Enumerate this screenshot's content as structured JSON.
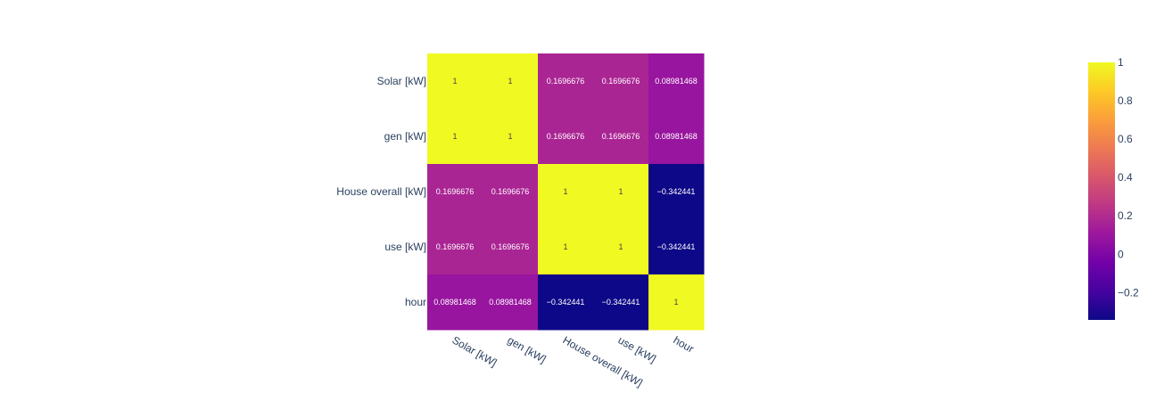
{
  "chart_data": {
    "type": "heatmap",
    "x": [
      "Solar [kW]",
      "gen [kW]",
      "House overall [kW]",
      "use [kW]",
      "hour"
    ],
    "y": [
      "Solar [kW]",
      "gen [kW]",
      "House overall [kW]",
      "use [kW]",
      "hour"
    ],
    "z": [
      [
        1,
        1,
        0.1696676,
        0.1696676,
        0.08981468
      ],
      [
        1,
        1,
        0.1696676,
        0.1696676,
        0.08981468
      ],
      [
        0.1696676,
        0.1696676,
        1,
        1,
        -0.342441
      ],
      [
        0.1696676,
        0.1696676,
        1,
        1,
        -0.342441
      ],
      [
        0.08981468,
        0.08981468,
        -0.342441,
        -0.342441,
        1
      ]
    ],
    "text": [
      [
        "1",
        "1",
        "0.1696676",
        "0.1696676",
        "0.08981468"
      ],
      [
        "1",
        "1",
        "0.1696676",
        "0.1696676",
        "0.08981468"
      ],
      [
        "0.1696676",
        "0.1696676",
        "1",
        "1",
        "−0.342441"
      ],
      [
        "0.1696676",
        "0.1696676",
        "1",
        "1",
        "−0.342441"
      ],
      [
        "0.08981468",
        "0.08981468",
        "−0.342441",
        "−0.342441",
        "1"
      ]
    ],
    "zmin": -0.342441,
    "zmax": 1,
    "colorscale": [
      "#0d0887",
      "#46039f",
      "#7201a8",
      "#9c179e",
      "#bd3786",
      "#d8576b",
      "#ed7953",
      "#fb9f3a",
      "#fdca26",
      "#f0f921"
    ],
    "colorbar": {
      "ticks": [
        1,
        0.8,
        0.6,
        0.4,
        0.2,
        0,
        -0.2
      ],
      "tick_labels": [
        "1",
        "0.8",
        "0.6",
        "0.4",
        "0.2",
        "0",
        "−0.2"
      ]
    },
    "axis_text_color": "#2a3f5f",
    "dark_text_color": "#444444",
    "light_text_color": "#ffffff",
    "xlabel": "",
    "ylabel": "",
    "title": ""
  }
}
